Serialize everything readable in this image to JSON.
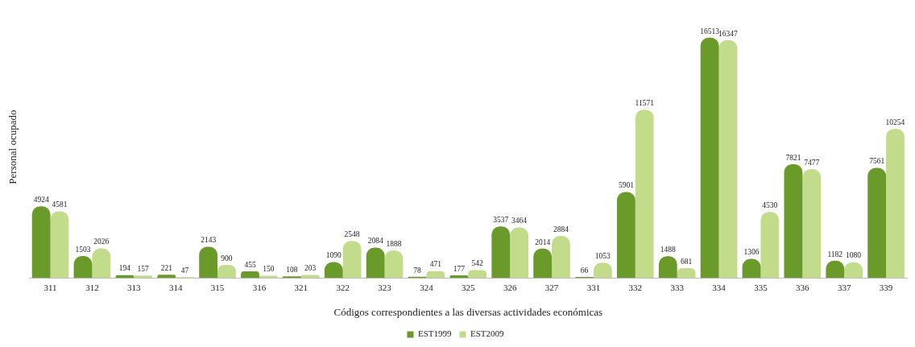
{
  "chart_data": {
    "type": "bar",
    "xlabel": "Códigos correspondientes a las diversas actividades económicas",
    "ylabel": "Personal ocupado",
    "categories": [
      "311",
      "312",
      "313",
      "314",
      "315",
      "316",
      "321",
      "322",
      "323",
      "324",
      "325",
      "326",
      "327",
      "331",
      "332",
      "333",
      "334",
      "335",
      "336",
      "337",
      "339"
    ],
    "series": [
      {
        "name": "EST1999",
        "color": "#6a9a2a",
        "values": [
          4924,
          1503,
          194,
          221,
          2143,
          455,
          108,
          1090,
          2084,
          78,
          177,
          3537,
          2014,
          66,
          5901,
          1488,
          16513,
          1306,
          7821,
          1182,
          7561
        ]
      },
      {
        "name": "EST2009",
        "color": "#c2dc8c",
        "values": [
          4581,
          2026,
          157,
          47,
          900,
          150,
          203,
          2548,
          1888,
          471,
          542,
          3464,
          2884,
          1053,
          11571,
          681,
          16347,
          4530,
          7477,
          1080,
          10254
        ]
      }
    ],
    "data_labels": true,
    "legend": "bottom",
    "grid": false
  }
}
